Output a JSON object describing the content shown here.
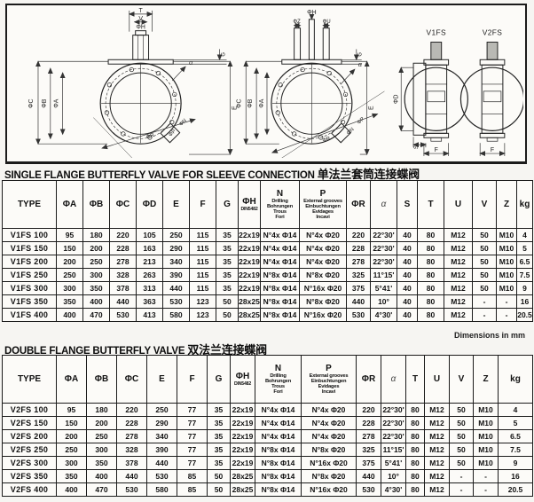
{
  "page": {
    "units_note": "Dimensions in mm"
  },
  "drawing": {
    "labels": {
      "T": "T",
      "V": "V",
      "phiH": "ΦH",
      "phiZ": "ΦZ",
      "phiU": "ΦU",
      "G": "G",
      "phiC": "ΦC",
      "phiB": "ΦB",
      "phiA": "ΦA",
      "E": "E",
      "phiD": "ΦD",
      "alpha": "α",
      "phiR": "ΦR",
      "phiN": "ΦN",
      "phiP": "ΦP",
      "S": "S",
      "F": "F",
      "v1fs": "V1FS",
      "v2fs": "V2FS"
    }
  },
  "table1": {
    "title_en": "SINGLE FLANGE BUTTERFLY VALVE FOR SLEEVE CONNECTION",
    "title_zh": "单法兰套筒连接蝶阀",
    "headers": [
      {
        "label": "TYPE"
      },
      {
        "label": "ΦA"
      },
      {
        "label": "ΦB"
      },
      {
        "label": "ΦC"
      },
      {
        "label": "ΦD"
      },
      {
        "label": "E"
      },
      {
        "label": "F"
      },
      {
        "label": "G"
      },
      {
        "label": "ΦH",
        "sub": [
          "DIN5482"
        ]
      },
      {
        "label": "N",
        "sub": [
          "Drilling",
          "Bohrungen",
          "Trous",
          "Fori"
        ]
      },
      {
        "label": "P",
        "sub": [
          "External grooves",
          "Einbuchtungen",
          "Evidages",
          "Incavi"
        ]
      },
      {
        "label": "ΦR"
      },
      {
        "label": "α"
      },
      {
        "label": "S"
      },
      {
        "label": "T"
      },
      {
        "label": "U"
      },
      {
        "label": "V"
      },
      {
        "label": "Z"
      },
      {
        "label": "kg"
      }
    ],
    "rows": [
      [
        "V1FS 100",
        "95",
        "180",
        "220",
        "105",
        "250",
        "115",
        "35",
        "22x19",
        "N°4x Φ14",
        "N°4x Φ20",
        "220",
        "22°30'",
        "40",
        "80",
        "M12",
        "50",
        "M10",
        "4"
      ],
      [
        "V1FS 150",
        "150",
        "200",
        "228",
        "163",
        "290",
        "115",
        "35",
        "22x19",
        "N°4x Φ14",
        "N°4x Φ20",
        "228",
        "22°30'",
        "40",
        "80",
        "M12",
        "50",
        "M10",
        "5"
      ],
      [
        "V1FS 200",
        "200",
        "250",
        "278",
        "213",
        "340",
        "115",
        "35",
        "22x19",
        "N°4x Φ14",
        "N°4x Φ20",
        "278",
        "22°30'",
        "40",
        "80",
        "M12",
        "50",
        "M10",
        "6.5"
      ],
      [
        "V1FS 250",
        "250",
        "300",
        "328",
        "263",
        "390",
        "115",
        "35",
        "22x19",
        "N°8x Φ14",
        "N°8x Φ20",
        "325",
        "11°15'",
        "40",
        "80",
        "M12",
        "50",
        "M10",
        "7.5"
      ],
      [
        "V1FS 300",
        "300",
        "350",
        "378",
        "313",
        "440",
        "115",
        "35",
        "22x19",
        "N°8x Φ14",
        "N°16x Φ20",
        "375",
        "5°41'",
        "40",
        "80",
        "M12",
        "50",
        "M10",
        "9"
      ],
      [
        "V1FS 350",
        "350",
        "400",
        "440",
        "363",
        "530",
        "123",
        "50",
        "28x25",
        "N°8x Φ14",
        "N°8x Φ20",
        "440",
        "10°",
        "40",
        "80",
        "M12",
        "-",
        "-",
        "16"
      ],
      [
        "V1FS 400",
        "400",
        "470",
        "530",
        "413",
        "580",
        "123",
        "50",
        "28x25",
        "N°8x Φ14",
        "N°16x Φ20",
        "530",
        "4°30'",
        "40",
        "80",
        "M12",
        "-",
        "-",
        "20.5"
      ]
    ]
  },
  "table2": {
    "title_en": "DOUBLE FLANGE BUTTERFLY VALVE",
    "title_zh": "双法兰连接蝶阀",
    "headers": [
      {
        "label": "TYPE"
      },
      {
        "label": "ΦA"
      },
      {
        "label": "ΦB"
      },
      {
        "label": "ΦC"
      },
      {
        "label": "E"
      },
      {
        "label": "F"
      },
      {
        "label": "G"
      },
      {
        "label": "ΦH",
        "sub": [
          "DIN5482"
        ]
      },
      {
        "label": "N",
        "sub": [
          "Drilling",
          "Bohrungen",
          "Trous",
          "Fori"
        ]
      },
      {
        "label": "P",
        "sub": [
          "External grooves",
          "Einbuchtungen",
          "Evidages",
          "Incavi"
        ]
      },
      {
        "label": "ΦR"
      },
      {
        "label": "α"
      },
      {
        "label": "T"
      },
      {
        "label": "U"
      },
      {
        "label": "V"
      },
      {
        "label": "Z"
      },
      {
        "label": "kg"
      }
    ],
    "rows": [
      [
        "V2FS 100",
        "95",
        "180",
        "220",
        "250",
        "77",
        "35",
        "22x19",
        "N°4x Φ14",
        "N°4x Φ20",
        "220",
        "22°30'",
        "80",
        "M12",
        "50",
        "M10",
        "4"
      ],
      [
        "V2FS 150",
        "150",
        "200",
        "228",
        "290",
        "77",
        "35",
        "22x19",
        "N°4x Φ14",
        "N°4x Φ20",
        "228",
        "22°30'",
        "80",
        "M12",
        "50",
        "M10",
        "5"
      ],
      [
        "V2FS 200",
        "200",
        "250",
        "278",
        "340",
        "77",
        "35",
        "22x19",
        "N°4x Φ14",
        "N°4x Φ20",
        "278",
        "22°30'",
        "80",
        "M12",
        "50",
        "M10",
        "6.5"
      ],
      [
        "V2FS 250",
        "250",
        "300",
        "328",
        "390",
        "77",
        "35",
        "22x19",
        "N°8x Φ14",
        "N°8x Φ20",
        "325",
        "11°15'",
        "80",
        "M12",
        "50",
        "M10",
        "7.5"
      ],
      [
        "V2FS 300",
        "300",
        "350",
        "378",
        "440",
        "77",
        "35",
        "22x19",
        "N°8x Φ14",
        "N°16x Φ20",
        "375",
        "5°41'",
        "80",
        "M12",
        "50",
        "M10",
        "9"
      ],
      [
        "V2FS 350",
        "350",
        "400",
        "440",
        "530",
        "85",
        "50",
        "28x25",
        "N°8x Φ14",
        "N°8x Φ20",
        "440",
        "10°",
        "80",
        "M12",
        "-",
        "-",
        "16"
      ],
      [
        "V2FS 400",
        "400",
        "470",
        "530",
        "580",
        "85",
        "50",
        "28x25",
        "N°8x Φ14",
        "N°16x Φ20",
        "530",
        "4°30'",
        "80",
        "M12",
        "-",
        "-",
        "20.5"
      ]
    ]
  }
}
